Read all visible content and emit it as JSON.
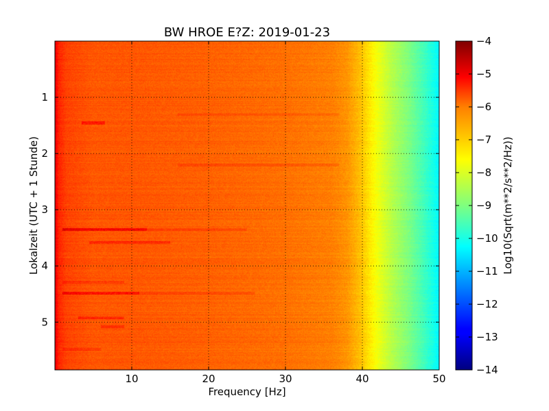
{
  "chart_data": {
    "type": "heatmap",
    "title": "BW HROE E?Z: 2019-01-23",
    "xlabel": "Frequency [Hz]",
    "ylabel": "Lokalzeit (UTC + 1 Stunde)",
    "xlim": [
      0,
      50
    ],
    "ylim": [
      5.85,
      0
    ],
    "x_ticks": [
      10,
      20,
      30,
      40,
      50
    ],
    "y_ticks": [
      1,
      2,
      3,
      4,
      5
    ],
    "grid": true,
    "colormap": "jet",
    "colorbar": {
      "label": "Log10(Sqrt(m**2/s**2/Hz))",
      "range": [
        -14,
        -4
      ],
      "ticks": [
        -4,
        -5,
        -6,
        -7,
        -8,
        -9,
        -10,
        -11,
        -12,
        -13,
        -14
      ]
    },
    "frequency_profile": {
      "x": [
        0,
        0.5,
        1.5,
        5,
        10,
        20,
        30,
        36,
        38,
        40,
        42,
        44,
        46,
        48,
        50
      ],
      "values": [
        -5.0,
        -5.6,
        -5.9,
        -6.1,
        -6.1,
        -6.2,
        -6.35,
        -6.5,
        -6.7,
        -7.2,
        -7.9,
        -8.5,
        -9.0,
        -9.6,
        -10.3
      ]
    },
    "bands": [
      {
        "time": 1.45,
        "f_start": 3.5,
        "f_end": 6.5,
        "delta": 0.55
      },
      {
        "time": 3.35,
        "f_start": 1.0,
        "f_end": 12.0,
        "delta": 0.9
      },
      {
        "time": 3.35,
        "f_start": 12.0,
        "f_end": 25.0,
        "delta": 0.3
      },
      {
        "time": 3.58,
        "f_start": 4.5,
        "f_end": 15.0,
        "delta": 0.45
      },
      {
        "time": 4.48,
        "f_start": 1.0,
        "f_end": 11.0,
        "delta": 0.75
      },
      {
        "time": 4.48,
        "f_start": 11.0,
        "f_end": 26.0,
        "delta": 0.3
      },
      {
        "time": 4.28,
        "f_start": 1.0,
        "f_end": 9.0,
        "delta": 0.3
      },
      {
        "time": 4.92,
        "f_start": 3.0,
        "f_end": 9.0,
        "delta": 0.45
      },
      {
        "time": 5.08,
        "f_start": 6.0,
        "f_end": 9.0,
        "delta": 0.4
      },
      {
        "time": 2.2,
        "f_start": 16.0,
        "f_end": 37.0,
        "delta": 0.25
      },
      {
        "time": 1.3,
        "f_start": 16.0,
        "f_end": 37.0,
        "delta": 0.2
      },
      {
        "time": 5.48,
        "f_start": 1.0,
        "f_end": 6.0,
        "delta": 0.3
      }
    ]
  }
}
